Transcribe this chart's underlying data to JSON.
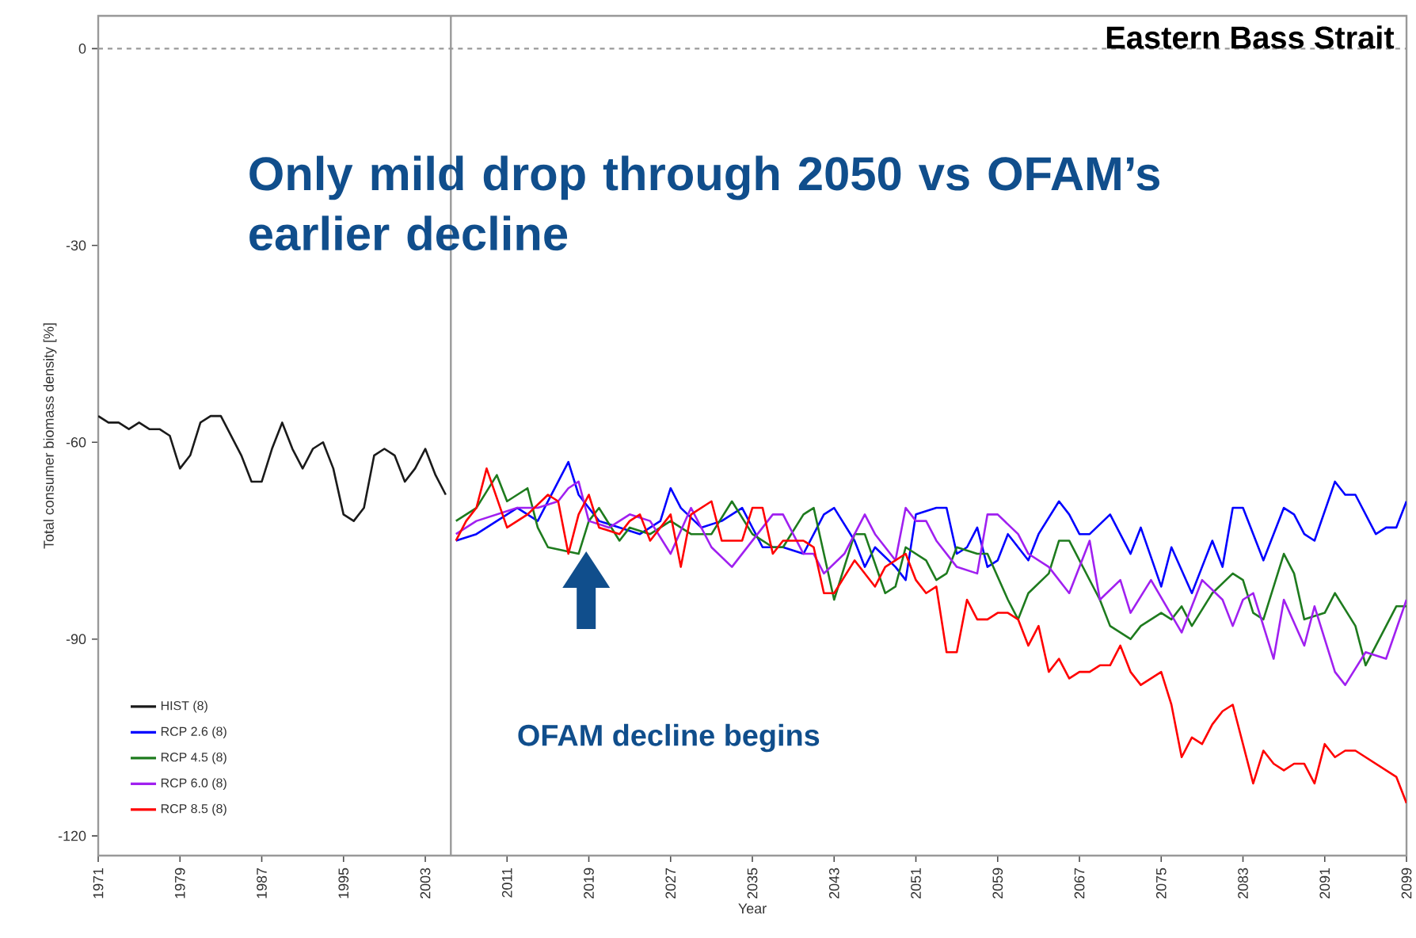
{
  "chart_data": {
    "type": "line",
    "title": "Eastern Bass Strait",
    "xlabel": "Year",
    "ylabel": "Total consumer biomass density [%]",
    "annotations": [
      "Only mild drop through 2050 vs OFAM’s earlier decline",
      "OFAM decline begins"
    ],
    "xlim": [
      1971,
      2099
    ],
    "ylim": [
      -123,
      5
    ],
    "xticks": [
      1971,
      1979,
      1987,
      1995,
      2003,
      2011,
      2019,
      2027,
      2035,
      2043,
      2051,
      2059,
      2067,
      2075,
      2083,
      2091,
      2099
    ],
    "yticks": [
      0,
      -30,
      -60,
      -90,
      -120
    ],
    "ref_lines": [
      {
        "axis": "y",
        "value": 0,
        "color": "#999999",
        "line_style": "dashed"
      },
      {
        "axis": "x",
        "value": 2005.5,
        "color": "#999999",
        "line_style": "solid"
      }
    ],
    "legend": "bottom left",
    "marker": "none",
    "line_style": "solid",
    "series": [
      {
        "name": "HIST (8)",
        "color": "#1a1a1a",
        "x": [
          1971,
          1972,
          1973,
          1974,
          1975,
          1976,
          1977,
          1978,
          1979,
          1980,
          1981,
          1982,
          1983,
          1984,
          1985,
          1986,
          1987,
          1988,
          1989,
          1990,
          1991,
          1992,
          1993,
          1994,
          1995,
          1996,
          1997,
          1998,
          1999,
          2000,
          2001,
          2002,
          2003,
          2004,
          2005
        ],
        "values": [
          -56,
          -57,
          -57,
          -58,
          -57,
          -58,
          -58,
          -59,
          -64,
          -62,
          -57,
          -56,
          -56,
          -59,
          -62,
          -66,
          -66,
          -61,
          -57,
          -61,
          -64,
          -61,
          -60,
          -64,
          -71,
          -72,
          -70,
          -62,
          -61,
          -62,
          -66,
          -64,
          -61,
          -65,
          -68
        ]
      },
      {
        "name": "RCP 2.6 (8)",
        "color": "#0000ff",
        "x": [
          2006,
          2008,
          2010,
          2012,
          2014,
          2016,
          2017,
          2018,
          2020,
          2022,
          2024,
          2026,
          2027,
          2028,
          2030,
          2032,
          2034,
          2036,
          2038,
          2040,
          2042,
          2043,
          2045,
          2046,
          2047,
          2049,
          2050,
          2051,
          2053,
          2054,
          2055,
          2056,
          2057,
          2058,
          2059,
          2060,
          2062,
          2063,
          2065,
          2066,
          2067,
          2068,
          2070,
          2072,
          2073,
          2075,
          2076,
          2078,
          2080,
          2081,
          2082,
          2083,
          2085,
          2087,
          2088,
          2089,
          2090,
          2092,
          2093,
          2094,
          2096,
          2097,
          2098,
          2099
        ],
        "values": [
          -75,
          -74,
          -72,
          -70,
          -72,
          -66,
          -63,
          -68,
          -72,
          -73,
          -74,
          -72,
          -67,
          -70,
          -73,
          -72,
          -70,
          -76,
          -76,
          -77,
          -71,
          -70,
          -75,
          -79,
          -76,
          -79,
          -81,
          -71,
          -70,
          -70,
          -77,
          -76,
          -73,
          -79,
          -78,
          -74,
          -78,
          -74,
          -69,
          -71,
          -74,
          -74,
          -71,
          -77,
          -73,
          -82,
          -76,
          -83,
          -75,
          -79,
          -70,
          -70,
          -78,
          -70,
          -71,
          -74,
          -75,
          -66,
          -68,
          -68,
          -74,
          -73,
          -73,
          -69
        ]
      },
      {
        "name": "RCP 4.5 (8)",
        "color": "#1e7b1e",
        "x": [
          2006,
          2008,
          2010,
          2011,
          2013,
          2014,
          2015,
          2018,
          2019,
          2020,
          2022,
          2023,
          2025,
          2027,
          2029,
          2031,
          2033,
          2035,
          2037,
          2038,
          2040,
          2041,
          2043,
          2045,
          2046,
          2048,
          2049,
          2050,
          2052,
          2053,
          2054,
          2055,
          2057,
          2058,
          2060,
          2061,
          2062,
          2064,
          2065,
          2066,
          2068,
          2069,
          2070,
          2072,
          2073,
          2075,
          2076,
          2077,
          2078,
          2080,
          2082,
          2083,
          2084,
          2085,
          2087,
          2088,
          2089,
          2091,
          2092,
          2094,
          2095,
          2097,
          2098,
          2099
        ],
        "values": [
          -72,
          -70,
          -65,
          -69,
          -67,
          -73,
          -76,
          -77,
          -72,
          -70,
          -75,
          -73,
          -74,
          -72,
          -74,
          -74,
          -69,
          -74,
          -76,
          -76,
          -71,
          -70,
          -84,
          -74,
          -74,
          -83,
          -82,
          -76,
          -78,
          -81,
          -80,
          -76,
          -77,
          -77,
          -84,
          -87,
          -83,
          -80,
          -75,
          -75,
          -81,
          -84,
          -88,
          -90,
          -88,
          -86,
          -87,
          -85,
          -88,
          -83,
          -80,
          -81,
          -86,
          -87,
          -77,
          -80,
          -87,
          -86,
          -83,
          -88,
          -94,
          -88,
          -85,
          -85
        ]
      },
      {
        "name": "RCP 6.0 (8)",
        "color": "#a020f0",
        "x": [
          2006,
          2008,
          2010,
          2012,
          2014,
          2016,
          2017,
          2018,
          2019,
          2021,
          2023,
          2025,
          2027,
          2029,
          2031,
          2033,
          2035,
          2037,
          2038,
          2040,
          2041,
          2042,
          2044,
          2046,
          2047,
          2049,
          2050,
          2051,
          2052,
          2053,
          2055,
          2057,
          2058,
          2059,
          2061,
          2062,
          2064,
          2066,
          2067,
          2068,
          2069,
          2071,
          2072,
          2074,
          2077,
          2078,
          2079,
          2081,
          2082,
          2083,
          2084,
          2086,
          2087,
          2089,
          2090,
          2092,
          2093,
          2095,
          2097,
          2099
        ],
        "values": [
          -74,
          -72,
          -71,
          -70,
          -70,
          -69,
          -67,
          -66,
          -72,
          -73,
          -71,
          -72,
          -77,
          -70,
          -76,
          -79,
          -75,
          -71,
          -71,
          -77,
          -77,
          -80,
          -77,
          -71,
          -74,
          -78,
          -70,
          -72,
          -72,
          -75,
          -79,
          -80,
          -71,
          -71,
          -74,
          -77,
          -79,
          -83,
          -79,
          -75,
          -84,
          -81,
          -86,
          -81,
          -89,
          -85,
          -81,
          -84,
          -88,
          -84,
          -83,
          -93,
          -84,
          -91,
          -85,
          -95,
          -97,
          -92,
          -93,
          -84
        ]
      },
      {
        "name": "RCP 8.5 (8)",
        "color": "#ff0000",
        "x": [
          2006,
          2007,
          2008,
          2009,
          2011,
          2013,
          2015,
          2016,
          2017,
          2018,
          2019,
          2020,
          2022,
          2023,
          2024,
          2025,
          2027,
          2028,
          2029,
          2031,
          2032,
          2034,
          2035,
          2036,
          2037,
          2038,
          2040,
          2041,
          2042,
          2043,
          2045,
          2046,
          2047,
          2048,
          2050,
          2051,
          2052,
          2053,
          2054,
          2055,
          2056,
          2057,
          2058,
          2059,
          2060,
          2061,
          2062,
          2063,
          2064,
          2065,
          2066,
          2067,
          2068,
          2069,
          2070,
          2071,
          2072,
          2073,
          2074,
          2075,
          2076,
          2077,
          2078,
          2079,
          2080,
          2081,
          2082,
          2083,
          2084,
          2085,
          2086,
          2087,
          2088,
          2089,
          2090,
          2091,
          2092,
          2093,
          2094,
          2095,
          2096,
          2097,
          2098,
          2099
        ],
        "values": [
          -75,
          -72,
          -70,
          -64,
          -73,
          -71,
          -68,
          -69,
          -77,
          -71,
          -68,
          -73,
          -74,
          -72,
          -71,
          -75,
          -71,
          -79,
          -71,
          -69,
          -75,
          -75,
          -70,
          -70,
          -77,
          -75,
          -75,
          -76,
          -83,
          -83,
          -78,
          -80,
          -82,
          -79,
          -77,
          -81,
          -83,
          -82,
          -92,
          -92,
          -84,
          -87,
          -87,
          -86,
          -86,
          -87,
          -91,
          -88,
          -95,
          -93,
          -96,
          -95,
          -95,
          -94,
          -94,
          -91,
          -95,
          -97,
          -96,
          -95,
          -100,
          -108,
          -105,
          -106,
          -103,
          -101,
          -100,
          -106,
          -112,
          -107,
          -109,
          -110,
          -109,
          -109,
          -112,
          -106,
          -108,
          -107,
          -107,
          -108,
          -109,
          -110,
          -111,
          -115
        ]
      }
    ]
  }
}
